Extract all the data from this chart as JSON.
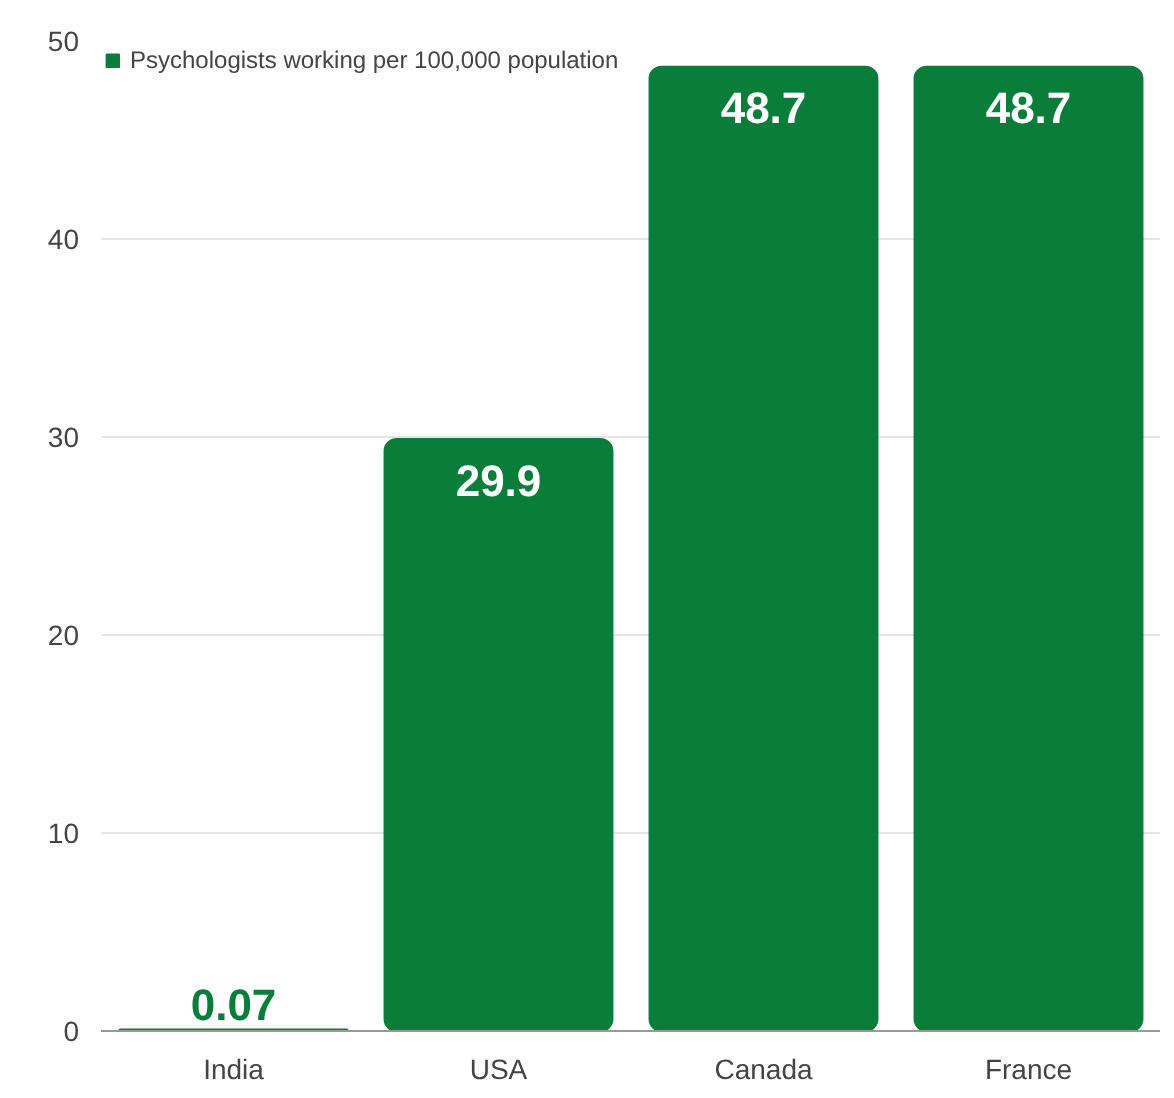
{
  "chart_data": {
    "type": "bar",
    "categories": [
      "India",
      "USA",
      "Canada",
      "France"
    ],
    "series": [
      {
        "name": "Psychologists working per 100,000 population",
        "color": "#0a7d3a",
        "values": [
          0.07,
          29.9,
          48.7,
          48.7
        ]
      }
    ],
    "ylim": [
      0,
      50
    ],
    "yticks": [
      0,
      10,
      20,
      30,
      40,
      50
    ],
    "grid": "y",
    "legend": "top left",
    "data_labels": true
  }
}
